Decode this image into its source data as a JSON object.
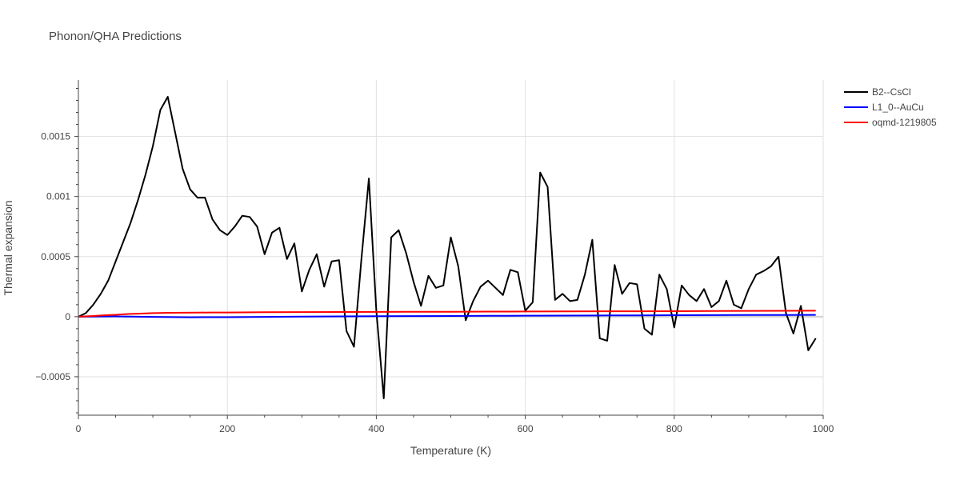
{
  "chart_data": {
    "type": "line",
    "title": "Phonon/QHA Predictions",
    "xlabel": "Temperature (K)",
    "ylabel": "Thermal expansion",
    "xlim": [
      0,
      1000
    ],
    "ylim": [
      -0.00082,
      0.00197
    ],
    "x_ticks": [
      0,
      200,
      400,
      600,
      800,
      1000
    ],
    "x_tick_labels": [
      "0",
      "200",
      "400",
      "600",
      "800",
      "1000"
    ],
    "y_ticks": [
      -0.0005,
      0,
      0.0005,
      0.001,
      0.0015
    ],
    "y_tick_labels": [
      "−0.0005",
      "0",
      "0.0005",
      "0.001",
      "0.0015"
    ],
    "grid": true,
    "legend_position": "top-right, outside plot",
    "series": [
      {
        "name": "B2--CsCl",
        "color": "#000000",
        "x": [
          0,
          10,
          20,
          30,
          40,
          50,
          60,
          70,
          80,
          90,
          100,
          110,
          120,
          130,
          140,
          150,
          160,
          170,
          180,
          190,
          200,
          210,
          220,
          230,
          240,
          250,
          260,
          270,
          280,
          290,
          300,
          310,
          320,
          330,
          340,
          350,
          360,
          370,
          380,
          390,
          400,
          410,
          420,
          430,
          440,
          450,
          460,
          470,
          480,
          490,
          500,
          510,
          520,
          530,
          540,
          550,
          560,
          570,
          580,
          590,
          600,
          610,
          620,
          630,
          640,
          650,
          660,
          670,
          680,
          690,
          700,
          710,
          720,
          730,
          740,
          750,
          760,
          770,
          780,
          790,
          800,
          810,
          820,
          830,
          840,
          850,
          860,
          870,
          880,
          890,
          900,
          910,
          920,
          930,
          940,
          950,
          960,
          970,
          980,
          990
        ],
        "y": [
          0,
          3e-05,
          0.0001,
          0.00019,
          0.0003,
          0.00046,
          0.00062,
          0.00078,
          0.00097,
          0.00118,
          0.00142,
          0.00172,
          0.00183,
          0.00153,
          0.00123,
          0.00106,
          0.00099,
          0.00099,
          0.00081,
          0.00072,
          0.00068,
          0.00075,
          0.00084,
          0.00083,
          0.00075,
          0.00052,
          0.0007,
          0.00074,
          0.00048,
          0.00061,
          0.00021,
          0.00039,
          0.00052,
          0.00025,
          0.00046,
          0.00047,
          -0.00012,
          -0.00025,
          0.00048,
          0.00115,
          5e-05,
          -0.00068,
          0.00066,
          0.00072,
          0.00053,
          0.00029,
          9e-05,
          0.00034,
          0.00024,
          0.00026,
          0.00066,
          0.00042,
          -3e-05,
          0.00013,
          0.00025,
          0.0003,
          0.00024,
          0.00018,
          0.00039,
          0.00037,
          5e-05,
          0.00012,
          0.0012,
          0.00108,
          0.00014,
          0.00019,
          0.00013,
          0.00014,
          0.00035,
          0.00064,
          -0.00018,
          -0.0002,
          0.00043,
          0.00019,
          0.00028,
          0.00027,
          -0.0001,
          -0.00015,
          0.00035,
          0.00023,
          -9e-05,
          0.00026,
          0.00018,
          0.00013,
          0.00023,
          8e-05,
          0.00013,
          0.0003,
          0.0001,
          7e-05,
          0.00023,
          0.00035,
          0.00038,
          0.00042,
          0.0005,
          3e-05,
          -0.00014,
          9e-05,
          -0.00028,
          -0.00018
        ]
      },
      {
        "name": "L1_0--AuCu",
        "color": "#0000ff",
        "x": [
          0,
          50,
          100,
          150,
          200,
          250,
          300,
          350,
          400,
          450,
          500,
          550,
          600,
          650,
          700,
          750,
          800,
          850,
          900,
          950,
          990
        ],
        "y": [
          0,
          2e-06,
          -2e-06,
          -5e-06,
          -4e-06,
          -2e-06,
          5e-07,
          2e-06,
          4e-06,
          5e-06,
          6e-06,
          7e-06,
          8e-06,
          9e-06,
          1e-05,
          1.1e-05,
          1.2e-05,
          1.3e-05,
          1.4e-05,
          1.4e-05,
          1.5e-05
        ]
      },
      {
        "name": "oqmd-1219805",
        "color": "#ff0000",
        "x": [
          0,
          10,
          20,
          30,
          40,
          50,
          60,
          70,
          80,
          90,
          100,
          110,
          120,
          140,
          160,
          180,
          200,
          250,
          300,
          350,
          400,
          450,
          500,
          550,
          600,
          650,
          700,
          750,
          800,
          850,
          900,
          950,
          990
        ],
        "y": [
          0,
          3e-06,
          6e-06,
          1e-05,
          1.3e-05,
          1.6e-05,
          2e-05,
          2.3e-05,
          2.5e-05,
          2.7e-05,
          3e-05,
          3.1e-05,
          3.2e-05,
          3.3e-05,
          3.4e-05,
          3.5e-05,
          3.5e-05,
          3.7e-05,
          3.8e-05,
          3.9e-05,
          4e-05,
          4.1e-05,
          4.1e-05,
          4.2e-05,
          4.3e-05,
          4.4e-05,
          4.5e-05,
          4.5e-05,
          4.6e-05,
          4.7e-05,
          4.8e-05,
          4.9e-05,
          5e-05
        ]
      }
    ]
  }
}
